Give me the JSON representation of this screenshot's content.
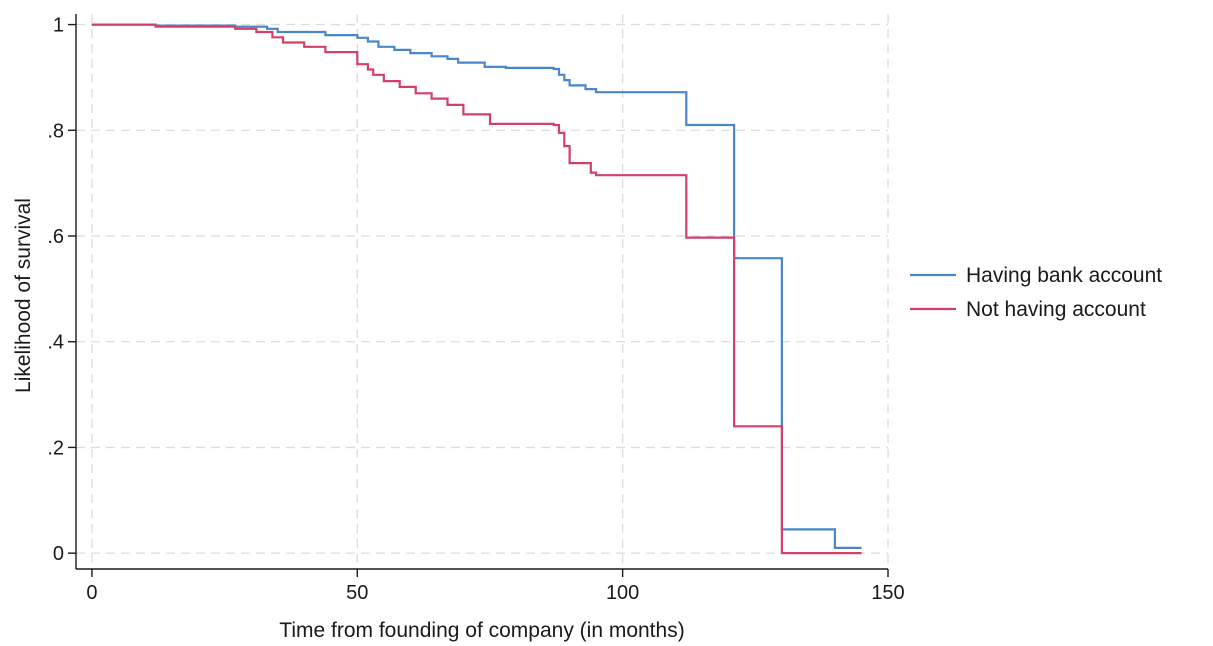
{
  "chart_data": {
    "type": "line",
    "step": true,
    "xlabel": "Time from founding of company (in months)",
    "ylabel": "Likelihood of survival",
    "xlim": [
      -3,
      150
    ],
    "ylim": [
      -0.03,
      1.02
    ],
    "xticks": [
      {
        "value": 0,
        "label": "0"
      },
      {
        "value": 50,
        "label": "50"
      },
      {
        "value": 100,
        "label": "100"
      },
      {
        "value": 150,
        "label": "150"
      }
    ],
    "yticks": [
      {
        "value": 0,
        "label": "0"
      },
      {
        "value": 0.2,
        "label": ".2"
      },
      {
        "value": 0.4,
        "label": ".4"
      },
      {
        "value": 0.6,
        "label": ".6"
      },
      {
        "value": 0.8,
        "label": ".8"
      },
      {
        "value": 1,
        "label": "1"
      }
    ],
    "grid": true,
    "legend_position": "right",
    "series": [
      {
        "name": "Having bank account",
        "color": "#4a86c8",
        "x": [
          0,
          12,
          27,
          33,
          35,
          44,
          50,
          52,
          54,
          57,
          60,
          64,
          67,
          69,
          74,
          78,
          87,
          88,
          89,
          90,
          93,
          95,
          112,
          121,
          130,
          140,
          145
        ],
        "y": [
          1.0,
          0.998,
          0.996,
          0.992,
          0.986,
          0.98,
          0.975,
          0.968,
          0.958,
          0.952,
          0.946,
          0.94,
          0.935,
          0.928,
          0.92,
          0.918,
          0.916,
          0.905,
          0.895,
          0.885,
          0.878,
          0.872,
          0.81,
          0.558,
          0.045,
          0.01,
          0.01
        ]
      },
      {
        "name": "Not having account",
        "color": "#d43f6a",
        "x": [
          0,
          12,
          27,
          31,
          34,
          36,
          40,
          44,
          50,
          52,
          53,
          55,
          58,
          61,
          64,
          67,
          70,
          75,
          87,
          88,
          89,
          90,
          94,
          95,
          112,
          121,
          130,
          145
        ],
        "y": [
          1.0,
          0.996,
          0.992,
          0.986,
          0.976,
          0.966,
          0.958,
          0.948,
          0.925,
          0.915,
          0.905,
          0.893,
          0.882,
          0.87,
          0.86,
          0.848,
          0.83,
          0.812,
          0.81,
          0.795,
          0.77,
          0.738,
          0.72,
          0.715,
          0.597,
          0.24,
          0.0,
          0.0
        ]
      }
    ]
  }
}
